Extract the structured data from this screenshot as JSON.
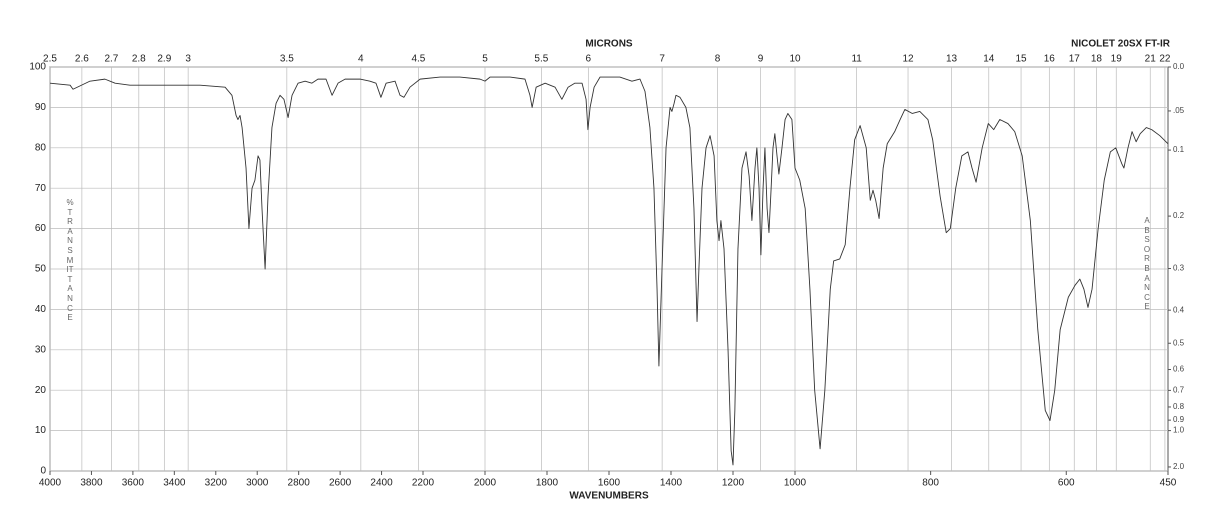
{
  "chart_data": {
    "type": "line",
    "annotation": "NICOLET 20SX FT-IR",
    "x_label": "WAVENUMBERS",
    "x2_label": "MICRONS",
    "y_label": "%TRANSMITTANCE",
    "y2_label": "ABSORBANCE",
    "y2scale": "absorbance",
    "grid": true,
    "xlim": [
      4000,
      450
    ],
    "xticks": [
      4000,
      3800,
      3600,
      3400,
      3200,
      3000,
      2800,
      2600,
      2400,
      2200,
      2000,
      1800,
      1600,
      1400,
      1200,
      1000,
      800,
      600,
      450
    ],
    "x2ticks": [
      2.5,
      2.6,
      2.7,
      2.8,
      2.9,
      3,
      3.5,
      4,
      4.5,
      5,
      5.5,
      6,
      7,
      8,
      9,
      10,
      11,
      12,
      13,
      14,
      15,
      16,
      17,
      18,
      19,
      21,
      22
    ],
    "ylim": [
      0,
      100
    ],
    "yticks": [
      0,
      10,
      20,
      30,
      40,
      50,
      60,
      70,
      80,
      90,
      100
    ],
    "y2ticks": [
      {
        "value": 0,
        "label": "0.0"
      },
      {
        "value": 0.05,
        "label": ".05"
      },
      0.1,
      0.2,
      0.3,
      0.4,
      0.5,
      0.6,
      0.7,
      0.8,
      0.9,
      {
        "value": 1,
        "label": "1.0"
      },
      {
        "value": 2,
        "label": "2.0"
      }
    ],
    "x": [
      4000,
      3903,
      3889,
      3807,
      3735,
      3686,
      3614,
      3517,
      3276,
      3155,
      3122,
      3102,
      3093,
      3083,
      3073,
      3054,
      3040,
      3025,
      3011,
      2996,
      2987,
      2977,
      2962,
      2948,
      2929,
      2909,
      2890,
      2871,
      2851,
      2832,
      2803,
      2769,
      2736,
      2707,
      2668,
      2639,
      2610,
      2576,
      2504,
      2456,
      2427,
      2403,
      2378,
      2335,
      2311,
      2292,
      2263,
      2214,
      2145,
      2081,
      2016,
      2000,
      1984,
      1919,
      1871,
      1855,
      1848,
      1835,
      1806,
      1774,
      1752,
      1732,
      1710,
      1687,
      1674,
      1668,
      1661,
      1648,
      1629,
      1565,
      1526,
      1500,
      1484,
      1468,
      1455,
      1445,
      1439,
      1429,
      1416,
      1403,
      1397,
      1390,
      1384,
      1371,
      1352,
      1339,
      1326,
      1316,
      1310,
      1300,
      1287,
      1274,
      1261,
      1252,
      1245,
      1239,
      1229,
      1216,
      1206,
      1200,
      1194,
      1184,
      1171,
      1158,
      1148,
      1139,
      1129,
      1123,
      1116,
      1110,
      1103,
      1097,
      1090,
      1084,
      1077,
      1071,
      1065,
      1058,
      1052,
      1042,
      1032,
      1023,
      1010,
      1000,
      993,
      985,
      978,
      971,
      963,
      956,
      948,
      943,
      934,
      926,
      919,
      912,
      904,
      895,
      889,
      885,
      881,
      876,
      870,
      864,
      853,
      845,
      838,
      827,
      816,
      804,
      797,
      786,
      777,
      771,
      763,
      754,
      745,
      739,
      733,
      724,
      715,
      707,
      698,
      686,
      676,
      665,
      653,
      642,
      631,
      624,
      617,
      609,
      597,
      587,
      580,
      574,
      568,
      562,
      553,
      544,
      535,
      527,
      518,
      515,
      509,
      503,
      497,
      491,
      482,
      474,
      462,
      450
    ],
    "series": [
      {
        "color": "#333333",
        "values": [
          96,
          95.5,
          94.5,
          96.5,
          97,
          96,
          95.5,
          95.5,
          95.5,
          95,
          93,
          88,
          87,
          88,
          85,
          75,
          60,
          70,
          72,
          78,
          77,
          65,
          50,
          68,
          85,
          91,
          93,
          92,
          87.5,
          93,
          96,
          96.5,
          96,
          97,
          97,
          93,
          96,
          97,
          97,
          96.5,
          96,
          92.5,
          96,
          96.5,
          93,
          92.5,
          95,
          97,
          97.5,
          97.5,
          97,
          96.5,
          97.5,
          97.5,
          97,
          93,
          90,
          95,
          96,
          95,
          92,
          95,
          96,
          96,
          92,
          84.5,
          90,
          95,
          97.5,
          97.5,
          96.5,
          97,
          94,
          85,
          70,
          45,
          26,
          50,
          80,
          90,
          89,
          91,
          93,
          92.5,
          90,
          85,
          65,
          37,
          50,
          70,
          80,
          83,
          78,
          62,
          57,
          62,
          55,
          30,
          5,
          1.5,
          15,
          55,
          75,
          79,
          73,
          62,
          75,
          80,
          70,
          53.5,
          70,
          80,
          65,
          59,
          70,
          80,
          83.5,
          78,
          73.5,
          80,
          87,
          88.5,
          87,
          75,
          72,
          65,
          45,
          20,
          5.5,
          20,
          45,
          52,
          52.5,
          56,
          70,
          82,
          85.5,
          80,
          67,
          69.5,
          67,
          62.5,
          75,
          81,
          84,
          87,
          89.5,
          88.5,
          89,
          87,
          82,
          68,
          59,
          60,
          70,
          78,
          79,
          75,
          71.5,
          80,
          86,
          84.5,
          87,
          86,
          84,
          78,
          62,
          35,
          15,
          12.5,
          20,
          35,
          43,
          46,
          47.5,
          45,
          40.5,
          45,
          60,
          72,
          79,
          80,
          76,
          75,
          80,
          84,
          81.5,
          83.5,
          85,
          84.5,
          83,
          81
        ]
      }
    ]
  }
}
